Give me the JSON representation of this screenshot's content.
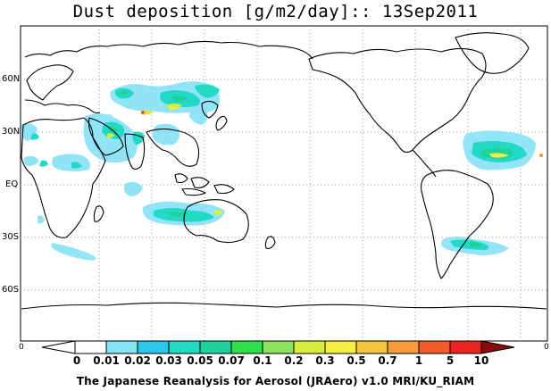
{
  "title": "Dust deposition [g/m2/day]:: 13Sep2011",
  "lat_labels": [
    "60N",
    "30N",
    "EQ",
    "30S",
    "60S"
  ],
  "axis_end_labels": {
    "left": "0",
    "right": "0"
  },
  "colorbar": {
    "ticks": [
      "0",
      "0.01",
      "0.02",
      "0.03",
      "0.05",
      "0.07",
      "0.1",
      "0.2",
      "0.3",
      "0.5",
      "0.7",
      "1",
      "5",
      "10"
    ],
    "colors": [
      "#ffffff",
      "#86e2f5",
      "#2cc6ec",
      "#22d9c6",
      "#1fd29b",
      "#2ee04a",
      "#8de45c",
      "#d8ee3d",
      "#f3ee3f",
      "#f5c542",
      "#f79a3a",
      "#f55a2c",
      "#ec2323",
      "#c11a1a",
      "#8b0a0a"
    ]
  },
  "credit": "The Japanese Reanalysis for Aerosol (JRAero) v1.0 MRI/KU_RIAM",
  "map_colors": {
    "coast": "#000000",
    "grid": "#9a9a9a",
    "frame": "#000000"
  }
}
